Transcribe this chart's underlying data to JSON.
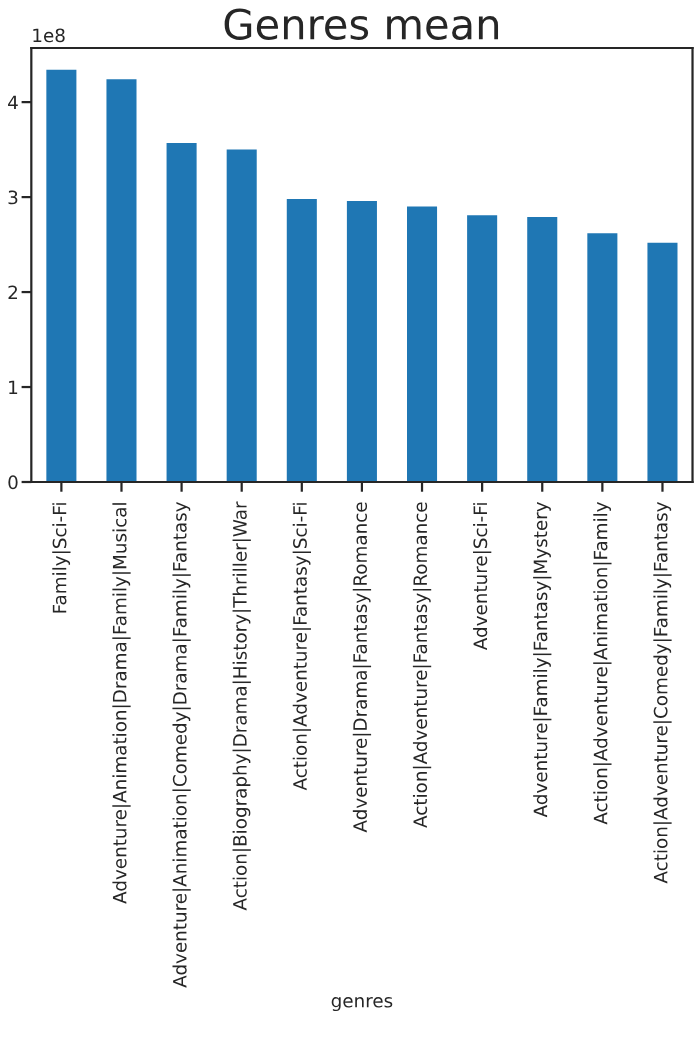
{
  "chart_data": {
    "type": "bar",
    "title": "Genres mean",
    "xlabel": "genres",
    "categories": [
      "Family|Sci-Fi",
      "Adventure|Animation|Drama|Family|Musical",
      "Adventure|Animation|Comedy|Drama|Family|Fantasy",
      "Action|Biography|Drama|History|Thriller|War",
      "Action|Adventure|Fantasy|Sci-Fi",
      "Adventure|Drama|Fantasy|Romance",
      "Action|Adventure|Fantasy|Romance",
      "Adventure|Sci-Fi",
      "Adventure|Family|Fantasy|Mystery",
      "Action|Adventure|Animation|Family",
      "Action|Adventure|Comedy|Family|Fantasy"
    ],
    "values": [
      4.34,
      4.24,
      3.57,
      3.5,
      2.98,
      2.96,
      2.9,
      2.81,
      2.79,
      2.62,
      2.52
    ],
    "color": "#1f77b4",
    "ylim": [
      0,
      4.57
    ],
    "yticks": [
      0,
      1,
      2,
      3,
      4
    ],
    "annotations": [
      "1e8"
    ],
    "grid": false,
    "legend": false
  }
}
